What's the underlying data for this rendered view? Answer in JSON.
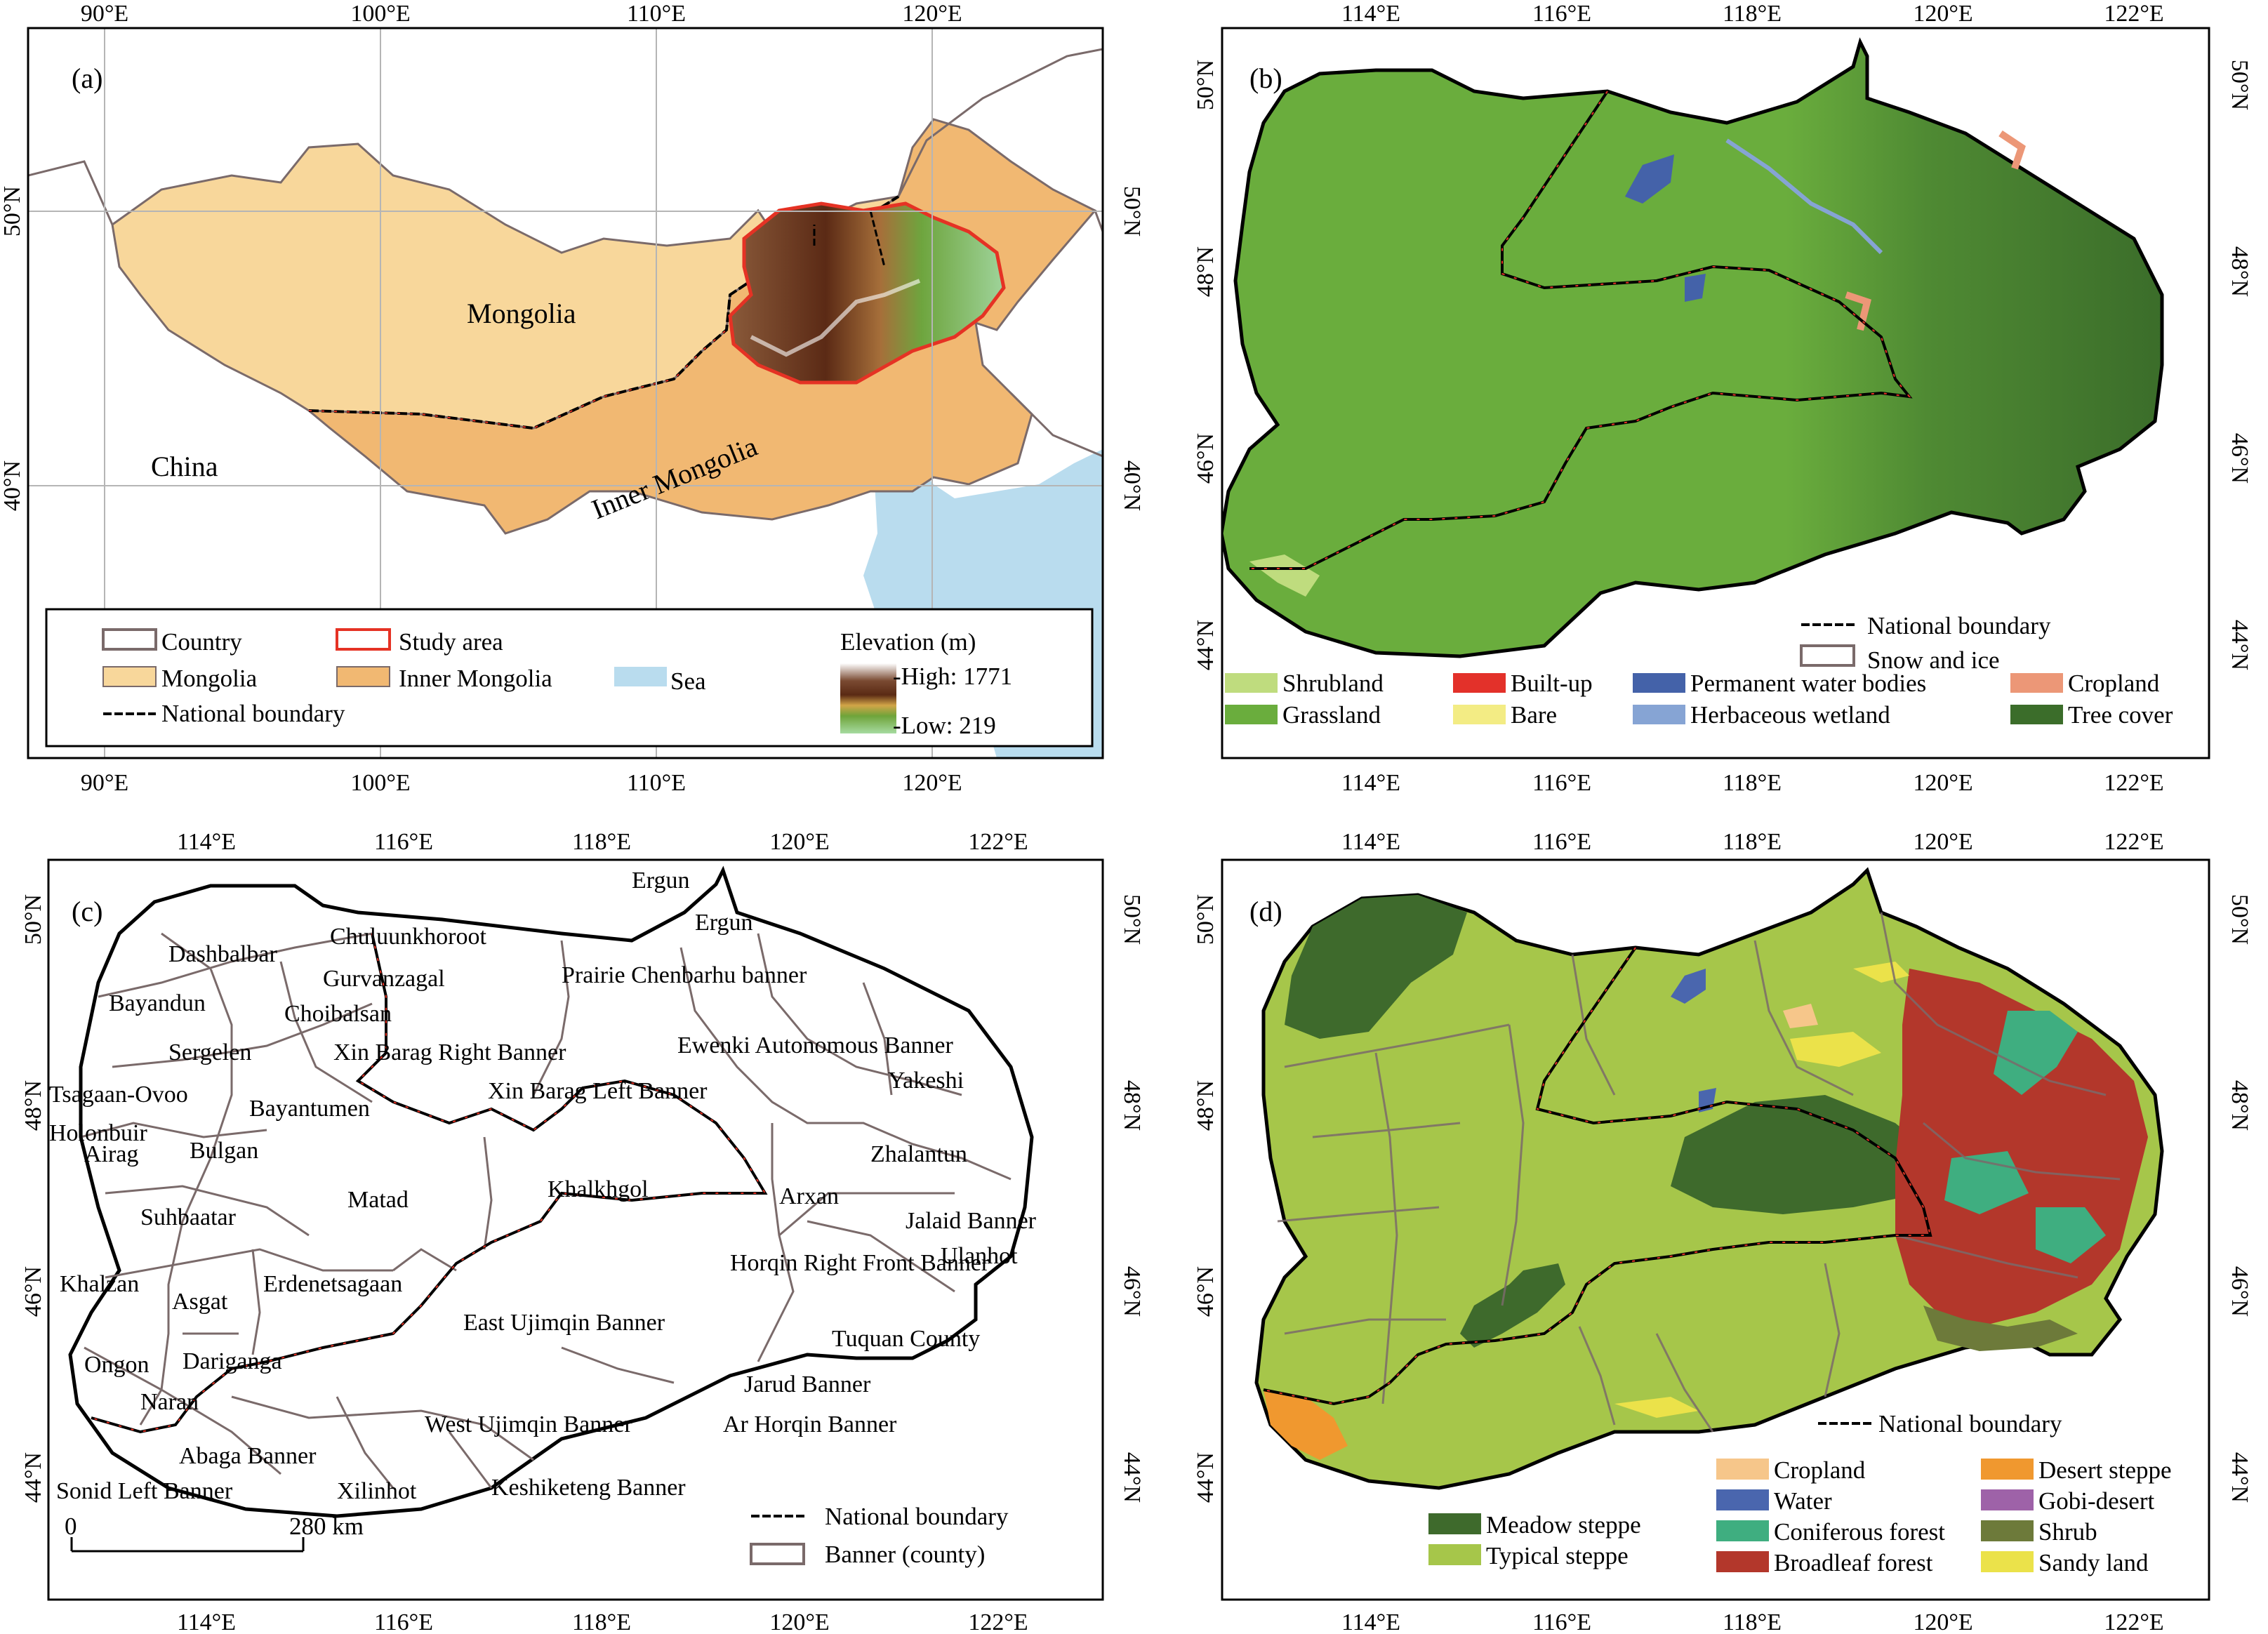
{
  "panel_a": {
    "label": "(a)",
    "ticks_top": [
      "90°E",
      "100°E",
      "110°E",
      "120°E"
    ],
    "ticks_bottom": [
      "90°E",
      "100°E",
      "110°E",
      "120°E"
    ],
    "ticks_left": [
      "50°N",
      "40°N"
    ],
    "ticks_right": [
      "50°N",
      "40°N"
    ],
    "labels": {
      "mongolia": "Mongolia",
      "china": "China",
      "inner_mongolia": "Inner Mongolia"
    },
    "legend": {
      "country": "Country",
      "mongolia": "Mongolia",
      "national_boundary": "National boundary",
      "study_area": "Study area",
      "inner_mongolia": "Inner Mongolia",
      "sea": "Sea",
      "elevation_title": "Elevation (m)",
      "high": "-High: 1771",
      "low": "-Low: 219"
    },
    "colors": {
      "mongolia": "#f8d79b",
      "inner_mongolia": "#f1b872",
      "sea": "#b9dcee",
      "study_area_outline": "#e53224"
    }
  },
  "panel_b": {
    "label": "(b)",
    "ticks_top": [
      "114°E",
      "116°E",
      "118°E",
      "120°E",
      "122°E"
    ],
    "ticks_bottom": [
      "114°E",
      "116°E",
      "118°E",
      "120°E",
      "122°E"
    ],
    "ticks_left": [
      "50°N",
      "48°N",
      "46°N",
      "44°N"
    ],
    "ticks_right": [
      "50°N",
      "48°N",
      "46°N",
      "44°N"
    ],
    "legend_top": {
      "national_boundary": "National boundary",
      "snow_ice": "Snow and ice"
    },
    "legend": [
      {
        "label": "Shrubland",
        "color": "#bfdc7e"
      },
      {
        "label": "Grassland",
        "color": "#6aad3d"
      },
      {
        "label": "Built-up",
        "color": "#e3312a"
      },
      {
        "label": "Bare",
        "color": "#f3ec84"
      },
      {
        "label": "Permanent water bodies",
        "color": "#4462a9"
      },
      {
        "label": "Herbaceous wetland",
        "color": "#86a4d4"
      },
      {
        "label": "Cropland",
        "color": "#ec9777"
      },
      {
        "label": "Tree cover",
        "color": "#3b6d2a"
      }
    ]
  },
  "panel_c": {
    "label": "(c)",
    "ticks_top": [
      "114°E",
      "116°E",
      "118°E",
      "120°E",
      "122°E"
    ],
    "ticks_bottom": [
      "114°E",
      "116°E",
      "118°E",
      "120°E",
      "122°E"
    ],
    "ticks_left": [
      "50°N",
      "48°N",
      "46°N",
      "44°N"
    ],
    "ticks_right": [
      "50°N",
      "48°N",
      "46°N",
      "44°N"
    ],
    "places": [
      "Ergun",
      "Ergun",
      "Chuluunkhoroot",
      "Dashbalbar",
      "Gurvanzagal",
      "Prairie Chenbarhu banner",
      "Bayandun",
      "Choibalsan",
      "Xin Barag Right Banner",
      "Ewenki Autonomous Banner",
      "Sergelen",
      "Yakeshi",
      "Tsagaan-Ovoo",
      "Xin Barag Left Banner",
      "Bayantumen",
      "Holonbuir",
      "Airag",
      "Bulgan",
      "Zhalantun",
      "Matad",
      "Khalkhgol",
      "Suhbaatar",
      "Arxan",
      "Jalaid Banner",
      "Horqin Right Front Banner",
      "Khalzan",
      "Erdenetsagaan",
      "Asgat",
      "Ulanhot",
      "East Ujimqin Banner",
      "Tuquan County",
      "Ongon",
      "Dariganga",
      "Jarud Banner",
      "Naran",
      "Ar Horqin Banner",
      "West Ujimqin Banner",
      "Abaga Banner",
      "Sonid Left Banner",
      "Xilinhot",
      "Keshiketeng Banner"
    ],
    "scale_zero": "0",
    "scale_label": "280 km",
    "legend": {
      "national_boundary": "National boundary",
      "banner": "Banner (county)"
    }
  },
  "panel_d": {
    "label": "(d)",
    "ticks_top": [
      "114°E",
      "116°E",
      "118°E",
      "120°E",
      "122°E"
    ],
    "ticks_bottom": [
      "114°E",
      "116°E",
      "118°E",
      "120°E",
      "122°E"
    ],
    "ticks_left": [
      "50°N",
      "48°N",
      "46°N",
      "44°N"
    ],
    "ticks_right": [
      "50°N",
      "48°N",
      "46°N",
      "44°N"
    ],
    "legend_top": {
      "national_boundary": "National boundary"
    },
    "legend": [
      {
        "label": "Meadow steppe",
        "color": "#3e6a2c"
      },
      {
        "label": "Typical steppe",
        "color": "#a6c64a"
      },
      {
        "label": "Cropland",
        "color": "#f6c68a"
      },
      {
        "label": "Water",
        "color": "#4a66ae"
      },
      {
        "label": "Coniferous forest",
        "color": "#3fae80"
      },
      {
        "label": "Broadleaf forest",
        "color": "#b3372b"
      },
      {
        "label": "Desert steppe",
        "color": "#f0982f"
      },
      {
        "label": "Gobi-desert",
        "color": "#9e62a8"
      },
      {
        "label": "Shrub",
        "color": "#6d7a3a"
      },
      {
        "label": "Sandy land",
        "color": "#ebe24a"
      }
    ]
  }
}
